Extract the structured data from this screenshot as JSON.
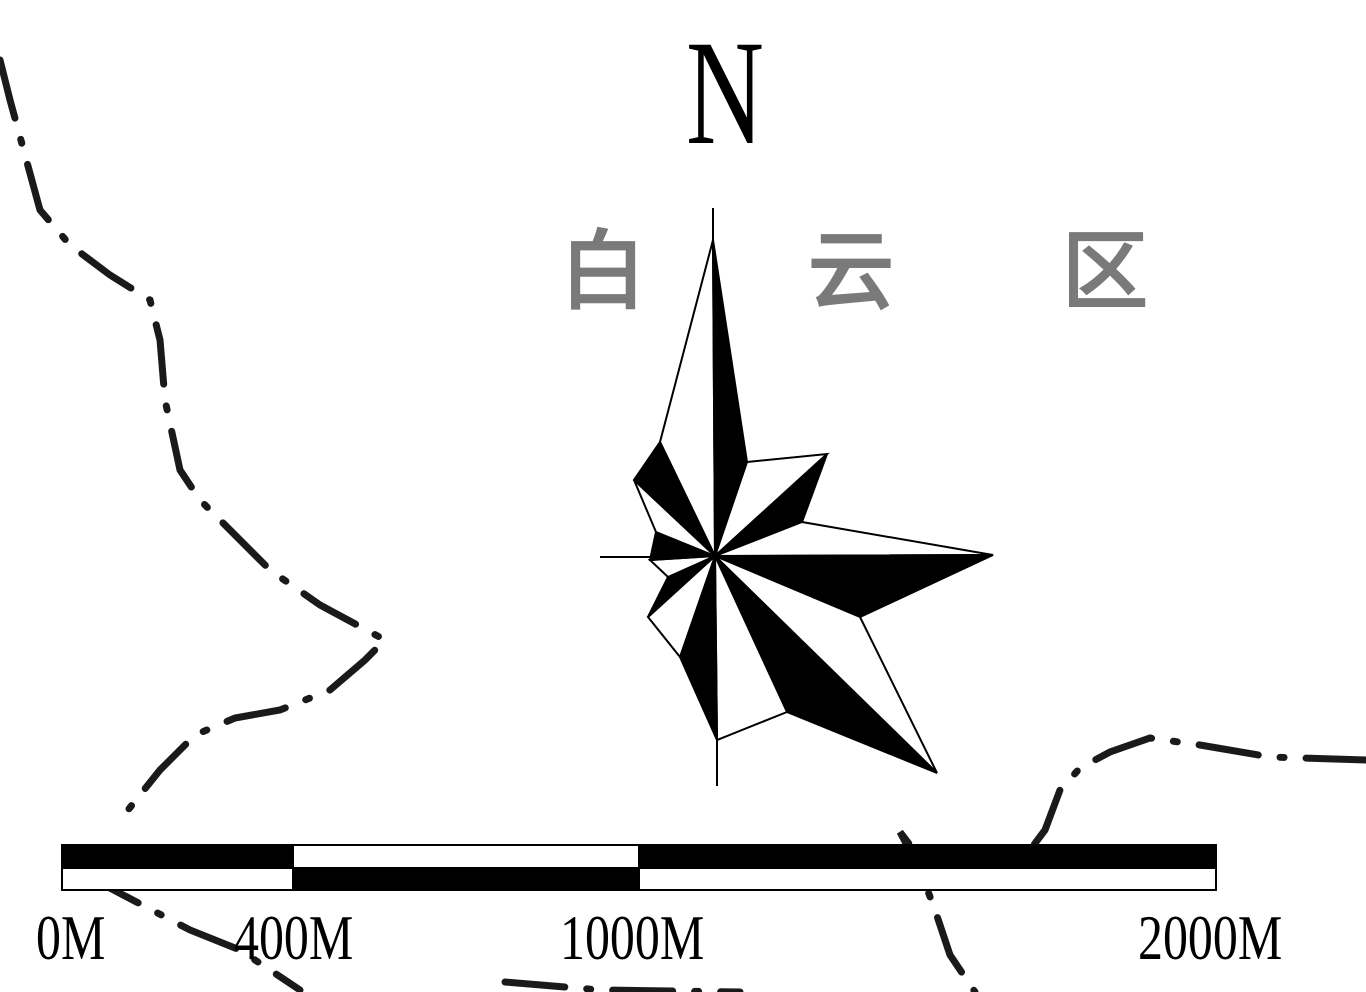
{
  "north_arrow": {
    "label": "N"
  },
  "district_label": {
    "chars": [
      "白",
      "云",
      "区"
    ],
    "color": "#7a7a7a"
  },
  "scale_bar": {
    "labels": [
      "0M",
      "400M",
      "1000M",
      "2000M"
    ],
    "colors": {
      "fill": "#000000",
      "empty": "#ffffff"
    }
  },
  "boundary_line": {
    "style": "dash-dot",
    "color": "#1a1a1a"
  }
}
